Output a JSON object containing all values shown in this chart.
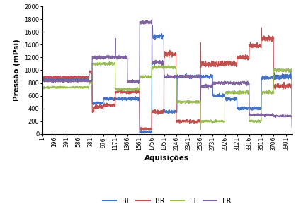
{
  "x_ticks": [
    1,
    196,
    391,
    586,
    781,
    976,
    1171,
    1366,
    1561,
    1756,
    1951,
    2146,
    2341,
    2536,
    2731,
    2926,
    3121,
    3316,
    3511,
    3706,
    3901
  ],
  "ylim": [
    0,
    2000
  ],
  "yticks": [
    0,
    200,
    400,
    600,
    800,
    1000,
    1200,
    1400,
    1600,
    1800,
    2000
  ],
  "xlabel": "Aquisições",
  "ylabel": "Pressão (mPsi)",
  "legend_labels": [
    "BL",
    "BR",
    "FL",
    "FR"
  ],
  "colors": {
    "BL": "#4472C4",
    "BR": "#C0504D",
    "FL": "#9BBB59",
    "FR": "#8064A2"
  },
  "line_width": 0.8
}
